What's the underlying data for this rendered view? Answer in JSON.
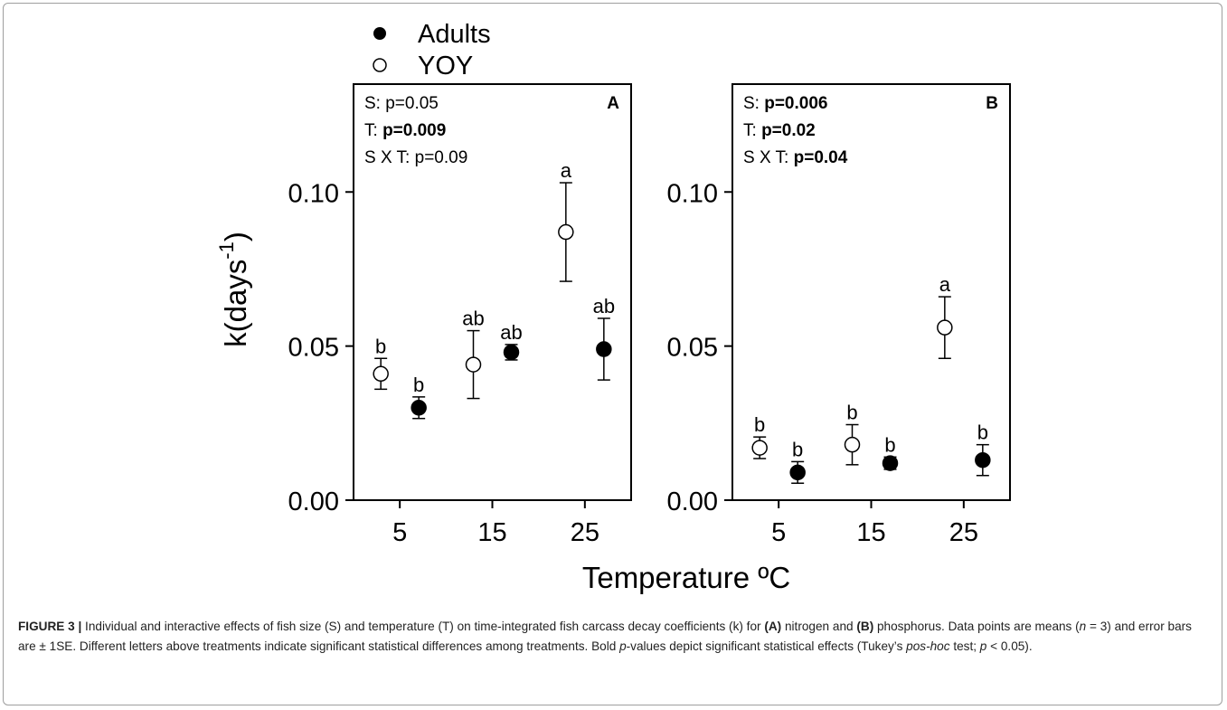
{
  "chart_data": {
    "type": "scatter",
    "legend": {
      "placement": "top",
      "entries": [
        {
          "name": "Adults",
          "marker": "filled-circle"
        },
        {
          "name": "YOY",
          "marker": "open-circle"
        }
      ]
    },
    "ylabel": "k(days",
    "ylabel_sup": "-1",
    "ylabel_close": ")",
    "xlabel": "Temperature ºC",
    "xticks": [
      "5",
      "15",
      "25"
    ],
    "yticks": [
      "0.00",
      "0.05",
      "0.10"
    ],
    "ylim": [
      0,
      0.135
    ],
    "xlim": [
      0,
      30
    ],
    "panels": [
      {
        "label": "A",
        "stats": [
          {
            "prefix": "S: ",
            "value": "p=0.05",
            "bold": false
          },
          {
            "prefix": "T: ",
            "value": "p=0.009",
            "bold": true
          },
          {
            "prefix": "S X T: ",
            "value": "p=0.09",
            "bold": false
          }
        ],
        "series": [
          {
            "name": "YOY",
            "fill": "open",
            "points": [
              {
                "x": 5,
                "y": 0.041,
                "err": 0.005,
                "letter": "b"
              },
              {
                "x": 15,
                "y": 0.044,
                "err": 0.011,
                "letter": "ab"
              },
              {
                "x": 25,
                "y": 0.087,
                "err": 0.016,
                "letter": "a"
              }
            ]
          },
          {
            "name": "Adults",
            "fill": "filled",
            "points": [
              {
                "x": 5,
                "y": 0.03,
                "err": 0.0035,
                "letter": "b"
              },
              {
                "x": 15,
                "y": 0.048,
                "err": 0.0025,
                "letter": "ab"
              },
              {
                "x": 25,
                "y": 0.049,
                "err": 0.01,
                "letter": "ab"
              }
            ]
          }
        ]
      },
      {
        "label": "B",
        "stats": [
          {
            "prefix": "S: ",
            "value": "p=0.006",
            "bold": true
          },
          {
            "prefix": "T: ",
            "value": "p=0.02",
            "bold": true
          },
          {
            "prefix": "S X T: ",
            "value": "p=0.04",
            "bold": true
          }
        ],
        "series": [
          {
            "name": "YOY",
            "fill": "open",
            "points": [
              {
                "x": 5,
                "y": 0.017,
                "err": 0.0035,
                "letter": "b"
              },
              {
                "x": 15,
                "y": 0.018,
                "err": 0.0065,
                "letter": "b"
              },
              {
                "x": 25,
                "y": 0.056,
                "err": 0.01,
                "letter": "a"
              }
            ]
          },
          {
            "name": "Adults",
            "fill": "filled",
            "points": [
              {
                "x": 5,
                "y": 0.009,
                "err": 0.0035,
                "letter": "b"
              },
              {
                "x": 15,
                "y": 0.012,
                "err": 0.002,
                "letter": "b"
              },
              {
                "x": 25,
                "y": 0.013,
                "err": 0.005,
                "letter": "b"
              }
            ]
          }
        ]
      }
    ]
  },
  "caption": {
    "label": "FIGURE 3 |",
    "t1": " Individual and interactive effects of fish size (S) and temperature (T) on time-integrated fish carcass decay coefficients (k) for ",
    "a": "(A)",
    "t2": " nitrogen and ",
    "b": "(B)",
    "t3": " phosphorus. Data points are means (",
    "n": "n",
    "t4": " = 3) and error bars are ± 1SE. Different letters above treatments indicate significant statistical differences among treatments. Bold ",
    "p1": "p",
    "t5": "-values depict significant statistical effects (Tukey’s ",
    "poshoc": "pos-hoc",
    "t6": " test; ",
    "p2": "p",
    "t7": " < 0.05)."
  }
}
